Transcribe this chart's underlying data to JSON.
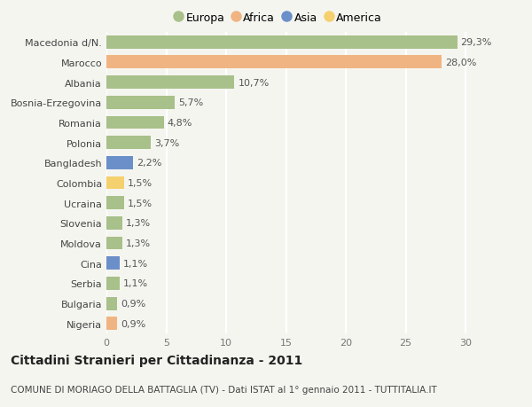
{
  "categories": [
    "Macedonia d/N.",
    "Marocco",
    "Albania",
    "Bosnia-Erzegovina",
    "Romania",
    "Polonia",
    "Bangladesh",
    "Colombia",
    "Ucraina",
    "Slovenia",
    "Moldova",
    "Cina",
    "Serbia",
    "Bulgaria",
    "Nigeria"
  ],
  "values": [
    29.3,
    28.0,
    10.7,
    5.7,
    4.8,
    3.7,
    2.2,
    1.5,
    1.5,
    1.3,
    1.3,
    1.1,
    1.1,
    0.9,
    0.9
  ],
  "labels": [
    "29,3%",
    "28,0%",
    "10,7%",
    "5,7%",
    "4,8%",
    "3,7%",
    "2,2%",
    "1,5%",
    "1,5%",
    "1,3%",
    "1,3%",
    "1,1%",
    "1,1%",
    "0,9%",
    "0,9%"
  ],
  "continents": [
    "Europa",
    "Africa",
    "Europa",
    "Europa",
    "Europa",
    "Europa",
    "Asia",
    "America",
    "Europa",
    "Europa",
    "Europa",
    "Asia",
    "Europa",
    "Europa",
    "Africa"
  ],
  "continent_colors": {
    "Europa": "#a8c08a",
    "Africa": "#f0b482",
    "Asia": "#6b8fc9",
    "America": "#f5d06e"
  },
  "legend_order": [
    "Europa",
    "Africa",
    "Asia",
    "America"
  ],
  "title": "Cittadini Stranieri per Cittadinanza - 2011",
  "subtitle": "COMUNE DI MORIAGO DELLA BATTAGLIA (TV) - Dati ISTAT al 1° gennaio 2011 - TUTTITALIA.IT",
  "xlim": [
    0,
    32
  ],
  "xticks": [
    0,
    5,
    10,
    15,
    20,
    25,
    30
  ],
  "background_color": "#f5f5f0",
  "grid_color": "#ffffff",
  "bar_height": 0.65,
  "title_fontsize": 10,
  "subtitle_fontsize": 7.5,
  "label_fontsize": 8,
  "tick_fontsize": 8,
  "legend_fontsize": 9
}
